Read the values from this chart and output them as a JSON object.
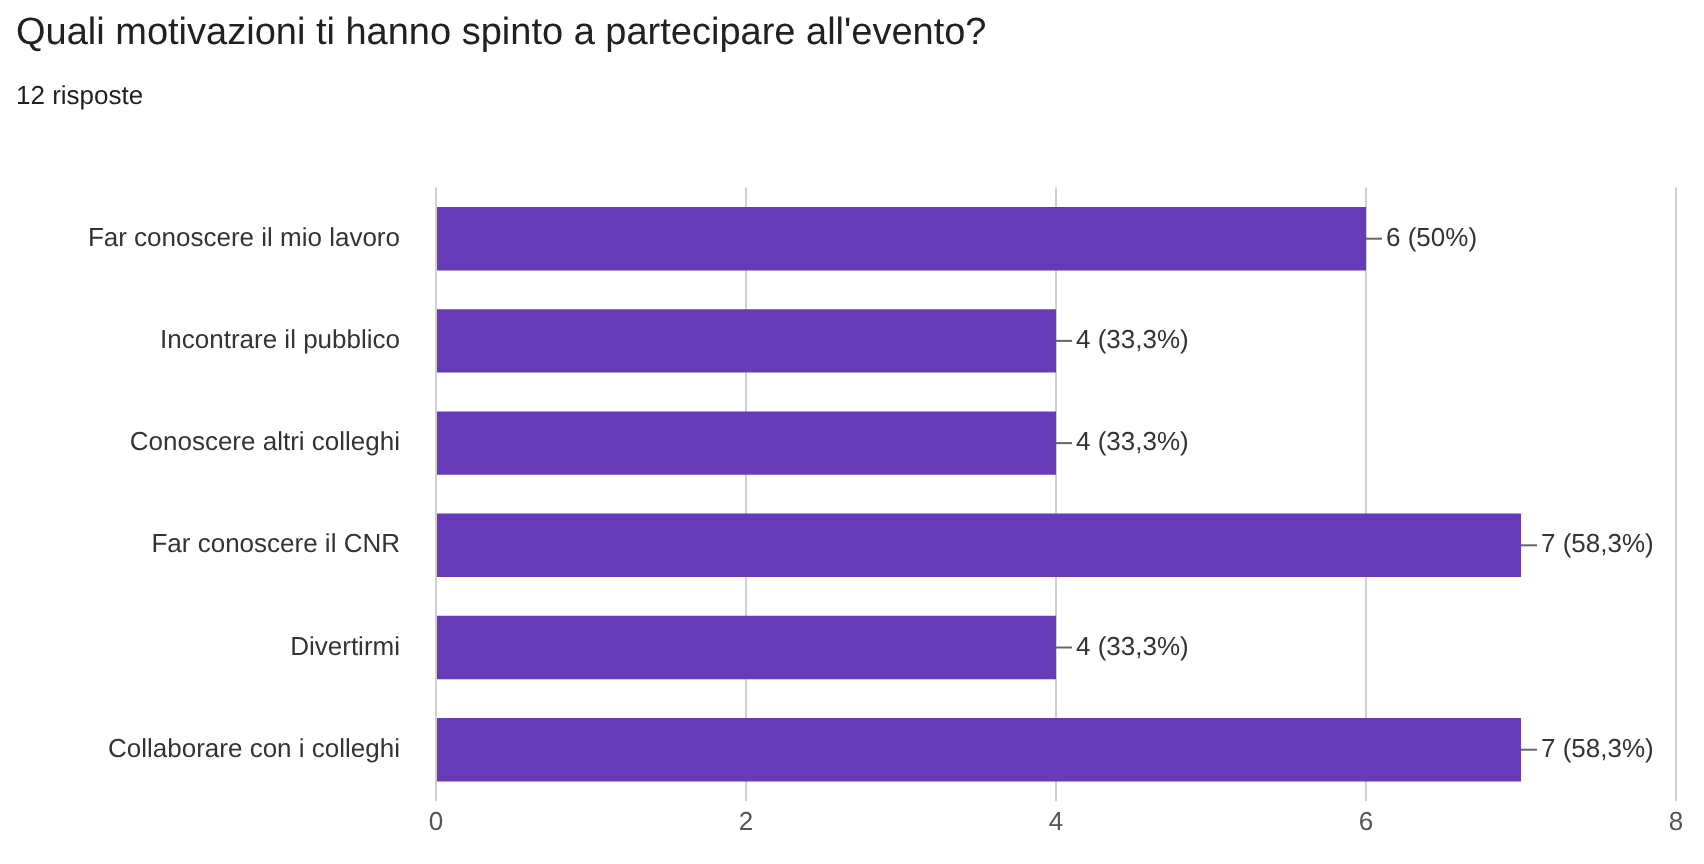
{
  "chart_data": {
    "type": "bar",
    "orientation": "horizontal",
    "title": "Quali motivazioni ti hanno spinto a partecipare all'evento?",
    "subtitle": "12 risposte",
    "categories": [
      "Far conoscere il mio lavoro",
      "Incontrare il pubblico",
      "Conoscere altri colleghi",
      "Far conoscere il CNR",
      "Divertirmi",
      "Collaborare con i colleghi"
    ],
    "values": [
      6,
      4,
      4,
      7,
      4,
      7
    ],
    "value_labels": [
      "6 (50%)",
      "4 (33,3%)",
      "4 (33,3%)",
      "7 (58,3%)",
      "4 (33,3%)",
      "7 (58,3%)"
    ],
    "color": "#673ab7",
    "xlim": [
      0,
      8
    ],
    "xticks": [
      0,
      2,
      4,
      6,
      8
    ],
    "grid": "x",
    "legend": false
  }
}
